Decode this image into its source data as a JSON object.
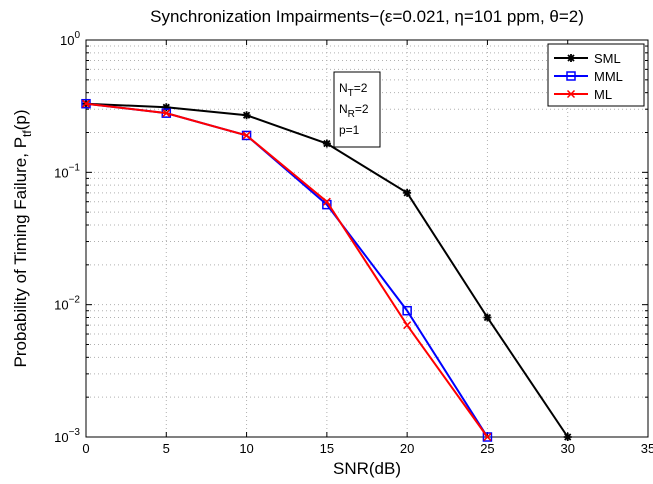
{
  "chart_data": {
    "type": "line",
    "title": "Synchronization Impairments−(ε=0.021, η=101 ppm, θ=2)",
    "xlabel": "SNR(dB)",
    "ylabel": "Probability of Timing Failure, P",
    "ylabel_sub": "tf",
    "ylabel_suffix": "(p)",
    "xlim": [
      0,
      35
    ],
    "ylim": [
      0.001,
      1
    ],
    "yscale": "log",
    "grid": true,
    "x_ticks": [
      0,
      5,
      10,
      15,
      20,
      25,
      30,
      35
    ],
    "y_ticks": [
      {
        "value": 1,
        "base": "10",
        "exp": "0"
      },
      {
        "value": 0.1,
        "base": "10",
        "exp": "−1"
      },
      {
        "value": 0.01,
        "base": "10",
        "exp": "−2"
      },
      {
        "value": 0.001,
        "base": "10",
        "exp": "−3"
      }
    ],
    "legend_position": "top-right",
    "series": [
      {
        "name": "SML",
        "color": "#000000",
        "marker": "star",
        "x": [
          0,
          5,
          10,
          15,
          20,
          25,
          30
        ],
        "values": [
          0.33,
          0.31,
          0.27,
          0.165,
          0.07,
          0.008,
          0.001
        ]
      },
      {
        "name": "MML",
        "color": "#0000ff",
        "marker": "square",
        "x": [
          0,
          5,
          10,
          15,
          20,
          25
        ],
        "values": [
          0.33,
          0.28,
          0.19,
          0.057,
          0.009,
          0.001
        ]
      },
      {
        "name": "ML",
        "color": "#ff0000",
        "marker": "x",
        "x": [
          0,
          5,
          10,
          15,
          20,
          25
        ],
        "values": [
          0.33,
          0.28,
          0.19,
          0.06,
          0.007,
          0.001
        ]
      }
    ],
    "annotation": {
      "lines": [
        {
          "main": "N",
          "sub": "T",
          "rest": "=2"
        },
        {
          "main": "N",
          "sub": "R",
          "rest": "=2"
        },
        {
          "main": "p=1",
          "sub": "",
          "rest": ""
        }
      ]
    }
  }
}
